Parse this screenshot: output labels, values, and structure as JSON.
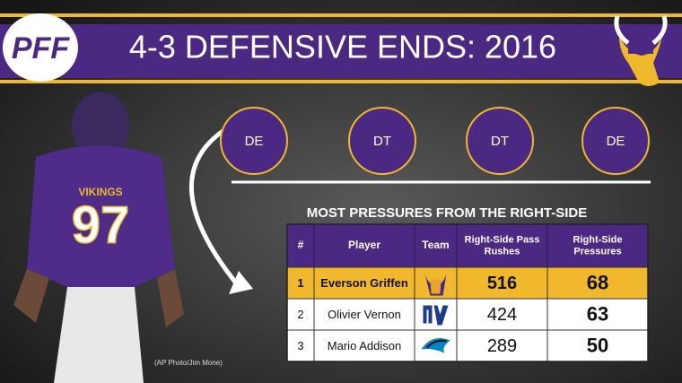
{
  "header": {
    "logo": "PFF",
    "title": "4-3 DEFENSIVE ENDS: 2016"
  },
  "player_image": {
    "jersey_number": "97",
    "jersey_text": "VIKINGS",
    "credit": "(AP Photo/Jim Mone)"
  },
  "positions": [
    "DE",
    "DT",
    "DT",
    "DE"
  ],
  "table": {
    "title": "MOST PRESSURES FROM THE RIGHT-SIDE",
    "columns": [
      "#",
      "Player",
      "Team",
      "Right-Side Pass Rushes",
      "Right-Side Pressures"
    ],
    "rows": [
      [
        1,
        "Everson Griffen",
        "MIN",
        516,
        68
      ],
      [
        2,
        "Olivier Vernon",
        "NYG",
        424,
        63
      ],
      [
        3,
        "Mario Addison",
        "CAR",
        289,
        50
      ]
    ]
  }
}
